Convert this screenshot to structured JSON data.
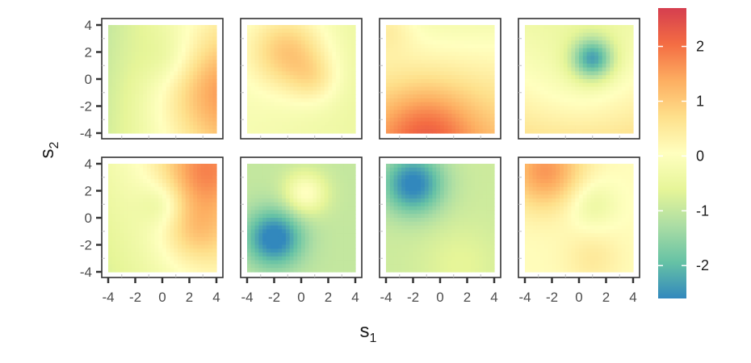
{
  "chart_data": {
    "type": "heatmap",
    "layout": {
      "rows": 2,
      "cols": 4
    },
    "x_label": {
      "base": "s",
      "sub": "1"
    },
    "y_label": {
      "base": "s",
      "sub": "2"
    },
    "xlim": [
      -4,
      4
    ],
    "ylim": [
      -4,
      4
    ],
    "x_ticks": [
      -4,
      -2,
      0,
      2,
      4
    ],
    "y_ticks": [
      -4,
      -2,
      0,
      2,
      4
    ],
    "x_tick_labels": [
      "-4",
      "-2",
      "0",
      "2",
      "4"
    ],
    "y_tick_labels": [
      "-4",
      "-2",
      "0",
      "2",
      "4"
    ],
    "colorbar": {
      "range": [
        -2.6,
        2.7
      ],
      "ticks": [
        2,
        1,
        0,
        -1,
        -2
      ],
      "tick_labels": [
        "2",
        "1",
        "0",
        "-1",
        "-2"
      ],
      "palette": [
        "#3288bd",
        "#66c2a5",
        "#abdda4",
        "#e6f598",
        "#ffffbf",
        "#fee08b",
        "#fdae61",
        "#f46d43",
        "#d53e4f"
      ]
    },
    "panels": [
      {
        "base": -0.3,
        "trend": [
          0.15,
          -0.02
        ],
        "blobs": [
          {
            "x": 4.0,
            "y": -1.0,
            "a": 1.2,
            "s": 2.8
          },
          {
            "x": 0.5,
            "y": 1.5,
            "a": -0.4,
            "s": 1.5
          }
        ]
      },
      {
        "base": -0.3,
        "trend": [
          -0.03,
          0.0
        ],
        "blobs": [
          {
            "x": -1.0,
            "y": 2.0,
            "a": 1.3,
            "s": 2.0
          },
          {
            "x": 1.0,
            "y": 0.0,
            "a": 0.6,
            "s": 1.3
          }
        ]
      },
      {
        "base": 0.4,
        "trend": [
          0.0,
          -0.15
        ],
        "blobs": [
          {
            "x": -1.0,
            "y": -4.0,
            "a": 1.2,
            "s": 2.5
          },
          {
            "x": -4.0,
            "y": 4.0,
            "a": 0.6,
            "s": 1.5
          }
        ]
      },
      {
        "base": 0.2,
        "trend": [
          0.0,
          -0.12
        ],
        "blobs": [
          {
            "x": 1.0,
            "y": 1.5,
            "a": -2.0,
            "s": 1.1
          },
          {
            "x": 0.0,
            "y": 0.0,
            "a": -0.4,
            "s": 3.0
          }
        ]
      },
      {
        "base": -0.1,
        "trend": [
          0.1,
          0.05
        ],
        "blobs": [
          {
            "x": 3.0,
            "y": 3.5,
            "a": 1.4,
            "s": 2.2
          },
          {
            "x": 2.5,
            "y": -1.0,
            "a": 0.9,
            "s": 1.8
          },
          {
            "x": 0.0,
            "y": 1.0,
            "a": -0.6,
            "s": 1.2
          }
        ]
      },
      {
        "base": -1.0,
        "trend": [
          0.0,
          0.0
        ],
        "blobs": [
          {
            "x": -2.0,
            "y": -1.5,
            "a": -1.8,
            "s": 1.5
          },
          {
            "x": 0.3,
            "y": 1.8,
            "a": 1.1,
            "s": 1.1
          }
        ]
      },
      {
        "base": -0.9,
        "trend": [
          0.0,
          0.0
        ],
        "blobs": [
          {
            "x": -2.0,
            "y": 2.5,
            "a": -1.8,
            "s": 1.6
          },
          {
            "x": 1.5,
            "y": -3.5,
            "a": 0.3,
            "s": 2.0
          }
        ]
      },
      {
        "base": 0.1,
        "trend": [
          0.0,
          0.0
        ],
        "blobs": [
          {
            "x": -2.5,
            "y": 3.5,
            "a": 1.5,
            "s": 2.0
          },
          {
            "x": 1.0,
            "y": 1.0,
            "a": -0.6,
            "s": 1.3
          },
          {
            "x": 1.0,
            "y": -3.0,
            "a": 0.4,
            "s": 1.5
          }
        ]
      }
    ]
  }
}
